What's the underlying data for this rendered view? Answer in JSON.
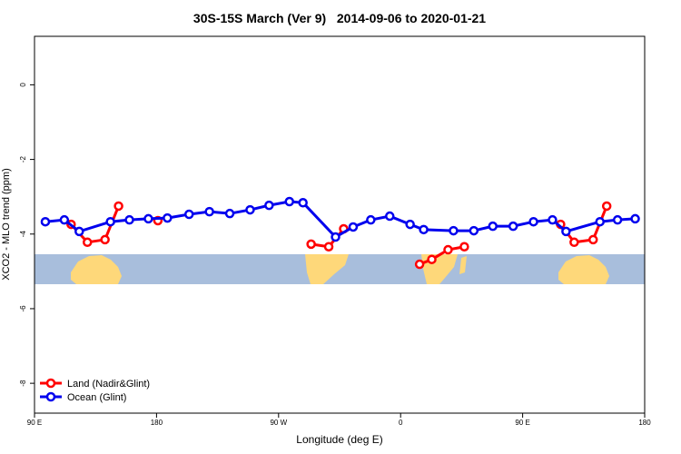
{
  "chart_data": {
    "type": "line",
    "title": "30S-15S March (Ver 9)   2014-09-06 to 2020-01-21",
    "xlabel": "Longitude (deg E)",
    "ylabel": "XCO2 - MLO trend (ppm)",
    "xlim": [
      90,
      540
    ],
    "ylim": [
      -8.8,
      1.3
    ],
    "xticks": [
      {
        "value": 90,
        "label": "90 E"
      },
      {
        "value": 180,
        "label": "180"
      },
      {
        "value": 270,
        "label": "90 W"
      },
      {
        "value": 360,
        "label": "0"
      },
      {
        "value": 450,
        "label": "90 E"
      },
      {
        "value": 540,
        "label": "180"
      }
    ],
    "yticks": [
      0,
      -2,
      -4,
      -6,
      -8
    ],
    "legend": "bottom-left",
    "series": [
      {
        "name": "Land (Nadir&Glint)",
        "color": "#ff0000",
        "x": [
          117,
          129,
          142,
          152,
          null,
          181,
          null,
          294,
          307,
          318,
          null,
          374,
          383,
          395,
          407,
          null,
          478,
          488,
          502,
          512
        ],
        "values": [
          -3.74,
          -4.22,
          -4.15,
          -3.25,
          null,
          -3.64,
          null,
          -4.27,
          -4.34,
          -3.86,
          null,
          -4.81,
          -4.68,
          -4.42,
          -4.34,
          null,
          -3.74,
          -4.22,
          -4.15,
          -3.25
        ]
      },
      {
        "name": "Ocean (Glint)",
        "color": "#0000ee",
        "x": [
          98,
          112,
          123,
          146,
          160,
          174,
          188,
          204,
          219,
          234,
          249,
          263,
          278,
          288,
          312,
          325,
          338,
          352,
          367,
          377,
          399,
          414,
          428,
          443,
          458,
          472,
          482,
          507,
          520,
          533
        ],
        "values": [
          -3.67,
          -3.62,
          -3.93,
          -3.67,
          -3.62,
          -3.59,
          -3.57,
          -3.47,
          -3.4,
          -3.45,
          -3.35,
          -3.23,
          -3.13,
          -3.16,
          -4.08,
          -3.81,
          -3.62,
          -3.52,
          -3.74,
          -3.88,
          -3.91,
          -3.91,
          -3.79,
          -3.79,
          -3.67,
          -3.62,
          -3.93,
          -3.67,
          -3.62,
          -3.59
        ]
      }
    ]
  }
}
